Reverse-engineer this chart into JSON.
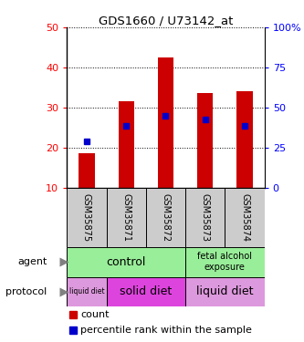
{
  "title": "GDS1660 / U73142_at",
  "samples": [
    "GSM35875",
    "GSM35871",
    "GSM35872",
    "GSM35873",
    "GSM35874"
  ],
  "bar_heights": [
    18.5,
    31.5,
    42.5,
    33.5,
    34.0
  ],
  "bar_bottom": 10,
  "percentile_values": [
    21.5,
    25.5,
    28.0,
    27.0,
    25.5
  ],
  "ylim_left": [
    10,
    50
  ],
  "ylim_right": [
    0,
    100
  ],
  "yticks_left": [
    10,
    20,
    30,
    40,
    50
  ],
  "yticks_right": [
    0,
    25,
    50,
    75,
    100
  ],
  "bar_color": "#cc0000",
  "dot_color": "#0000cc",
  "sample_bg_color": "#cccccc",
  "legend_count_color": "#cc0000",
  "legend_pct_color": "#0000cc",
  "agent_control_color": "#99ee99",
  "agent_fetal_color": "#99ee99",
  "protocol_liquid_color": "#dd99dd",
  "protocol_solid_color": "#dd44dd"
}
